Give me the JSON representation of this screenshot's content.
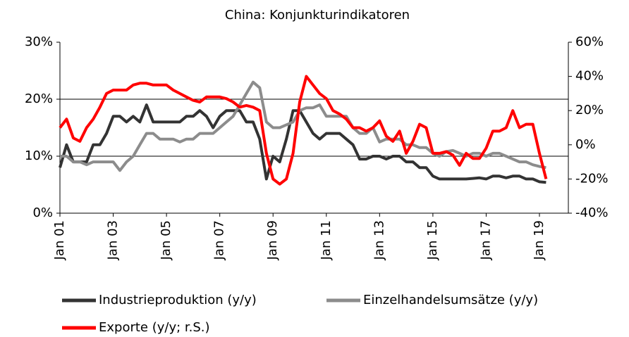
{
  "chart_data": {
    "type": "line",
    "title": "China: Konjunkturindikatoren",
    "categories": [
      "Jan 01",
      null,
      null,
      null,
      null,
      null,
      null,
      null,
      "Jan 03",
      null,
      null,
      null,
      null,
      null,
      null,
      null,
      "Jan 05",
      null,
      null,
      null,
      null,
      null,
      null,
      null,
      "Jan 07",
      null,
      null,
      null,
      null,
      null,
      null,
      null,
      "Jan 09",
      null,
      null,
      null,
      null,
      null,
      null,
      null,
      "Jan 11",
      null,
      null,
      null,
      null,
      null,
      null,
      null,
      "Jan 13",
      null,
      null,
      null,
      null,
      null,
      null,
      null,
      "Jan 15",
      null,
      null,
      null,
      null,
      null,
      null,
      null,
      "Jan 17",
      null,
      null,
      null,
      null,
      null,
      null,
      null,
      "Jan 19",
      null
    ],
    "series": [
      {
        "name": "Industrieproduktion (y/y)",
        "color": "#333333",
        "values": [
          8,
          12,
          9,
          9,
          9,
          12,
          12,
          14,
          17,
          17,
          16,
          17,
          16,
          19,
          16,
          16,
          16,
          16,
          16,
          17,
          17,
          18,
          17,
          15,
          17,
          18,
          18,
          18,
          16,
          16,
          13,
          6,
          10,
          9,
          13,
          18,
          18,
          16,
          14,
          13,
          14,
          14,
          14,
          13,
          12,
          9.5,
          9.5,
          10,
          10,
          9.5,
          10,
          10,
          9,
          9,
          8,
          8,
          6.5,
          6,
          6,
          6,
          6,
          6,
          6.1,
          6.2,
          6,
          6.5,
          6.5,
          6.2,
          6.5,
          6.5,
          6,
          6,
          5.5,
          5.4
        ]
      },
      {
        "name": "Einzelhandelsumsätze (y/y)",
        "color": "#8c8c8c",
        "values": [
          10,
          10,
          9,
          9,
          8.5,
          9,
          9,
          9,
          9,
          7.5,
          9,
          10,
          12,
          14,
          14,
          13,
          13,
          13,
          12.5,
          13,
          13,
          14,
          14,
          14,
          15,
          16,
          17,
          19,
          21,
          23,
          22,
          16,
          15,
          15,
          15.5,
          16,
          18,
          18.5,
          18.5,
          19,
          17,
          17,
          17,
          17,
          15,
          14,
          14,
          15,
          12.5,
          13,
          13,
          13,
          12,
          12,
          11.5,
          11.5,
          10.5,
          10,
          10.8,
          11,
          10.5,
          10,
          10.5,
          10.5,
          10,
          10.5,
          10.5,
          10,
          9.5,
          9,
          9,
          8.5,
          8.2,
          8
        ]
      },
      {
        "name": "Exporte (y/y; r.S.)",
        "color": "#ff0000",
        "axis": "y2",
        "values": [
          10,
          15,
          4,
          2,
          10,
          15,
          22,
          30,
          32,
          32,
          32,
          35,
          36,
          36,
          35,
          35,
          35,
          32,
          30,
          28,
          26,
          25,
          28,
          28,
          28,
          27,
          25,
          22,
          23,
          22,
          20,
          -5,
          -20,
          -23,
          -20,
          -5,
          25,
          40,
          35,
          30,
          27,
          20,
          18,
          15,
          10,
          10,
          8,
          10,
          14,
          5,
          2,
          8,
          -5,
          2,
          12,
          10,
          -5,
          -5,
          -4,
          -6,
          -12,
          -5,
          -8,
          -8,
          -2,
          8,
          8,
          10,
          20,
          10,
          12,
          12,
          -5,
          -20
        ]
      }
    ],
    "ylim": [
      0,
      30
    ],
    "yticks": [
      {
        "value": 0,
        "label": "0%"
      },
      {
        "value": 10,
        "label": "10%"
      },
      {
        "value": 20,
        "label": "20%"
      },
      {
        "value": 30,
        "label": "30%"
      }
    ],
    "y2lim": [
      -40,
      60
    ],
    "y2ticks": [
      {
        "value": -40,
        "label": "-40%"
      },
      {
        "value": -20,
        "label": "-20%"
      },
      {
        "value": 0,
        "label": "0%"
      },
      {
        "value": 20,
        "label": "20%"
      },
      {
        "value": 40,
        "label": "40%"
      },
      {
        "value": 60,
        "label": "60%"
      }
    ],
    "grid": true
  }
}
